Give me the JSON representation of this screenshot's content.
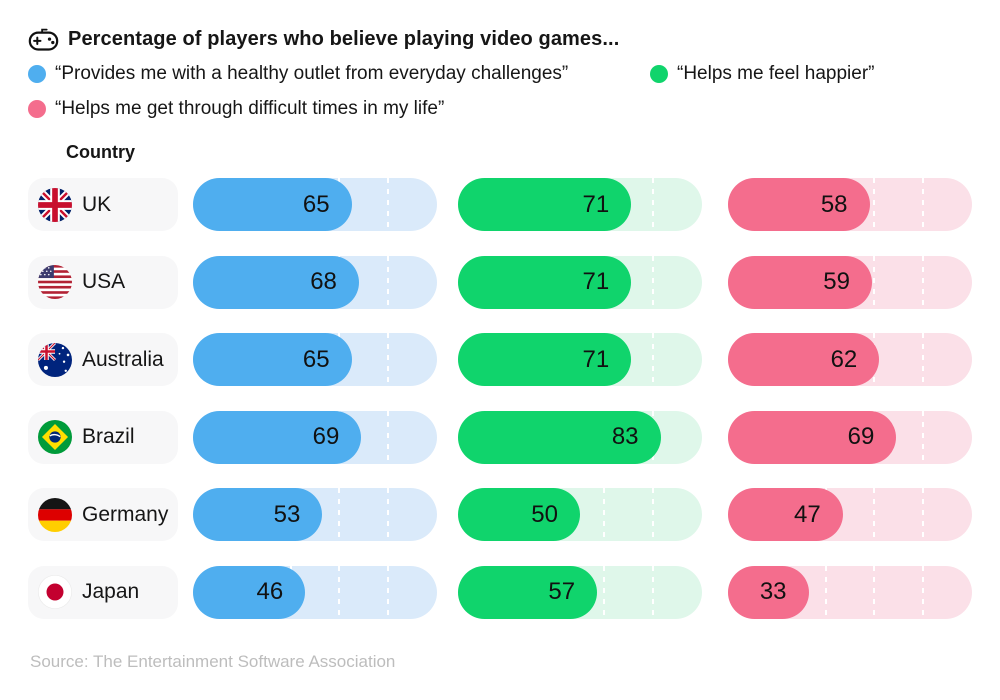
{
  "title": "Percentage of players who believe playing video games...",
  "legend": [
    {
      "label": "“Provides me with a healthy outlet from everyday challenges”",
      "color": "#4FAEEF"
    },
    {
      "label": "“Helps me feel happier”",
      "color": "#10D46C"
    },
    {
      "label": "“Helps me get through difficult times in my life”",
      "color": "#F46D8D"
    }
  ],
  "column_header": "Country",
  "source": "Source: The Entertainment Software Association",
  "chart_data": {
    "type": "bar",
    "orientation": "horizontal",
    "title": "Percentage of players who believe playing video games...",
    "categories": [
      "UK",
      "USA",
      "Australia",
      "Brazil",
      "Germany",
      "Japan"
    ],
    "series": [
      {
        "name": "“Provides me with a healthy outlet from everyday challenges”",
        "color": "#4FAEEF",
        "track_color": "#DAEAFA",
        "values": [
          65,
          68,
          65,
          69,
          53,
          46
        ]
      },
      {
        "name": "“Helps me feel happier”",
        "color": "#10D46C",
        "track_color": "#DFF7EA",
        "values": [
          71,
          71,
          71,
          83,
          50,
          57
        ]
      },
      {
        "name": "“Helps me get through difficult times in my life”",
        "color": "#F46D8D",
        "track_color": "#FBE0E8",
        "values": [
          58,
          59,
          62,
          69,
          47,
          33
        ]
      }
    ],
    "xlim": [
      0,
      100
    ],
    "gridlines_pct": [
      20,
      40,
      60,
      80
    ],
    "grid": "dashed white vertical lines inside tracks",
    "legend_position": "top",
    "value_labels": "inside bar, right-aligned",
    "source": "Source: The Entertainment Software Association"
  }
}
